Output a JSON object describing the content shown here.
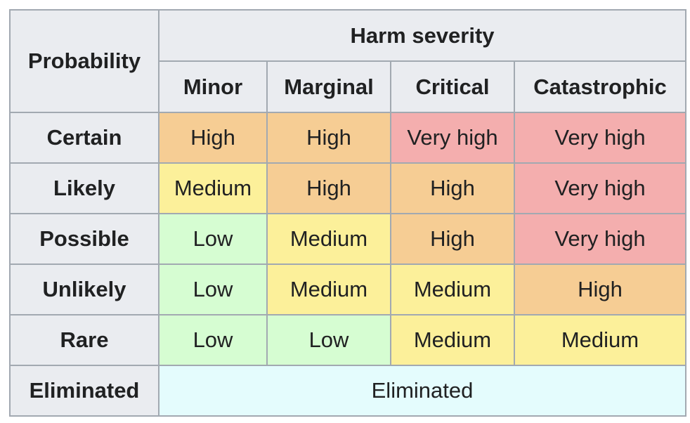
{
  "table": {
    "corner_label": "Probability",
    "severity_header": "Harm severity",
    "columns": [
      "Minor",
      "Marginal",
      "Critical",
      "Catastrophic"
    ],
    "rows": [
      {
        "label": "Certain",
        "cells": [
          "High",
          "High",
          "Very high",
          "Very high"
        ]
      },
      {
        "label": "Likely",
        "cells": [
          "Medium",
          "High",
          "High",
          "Very high"
        ]
      },
      {
        "label": "Possible",
        "cells": [
          "Low",
          "Medium",
          "High",
          "Very high"
        ]
      },
      {
        "label": "Unlikely",
        "cells": [
          "Low",
          "Medium",
          "Medium",
          "High"
        ]
      },
      {
        "label": "Rare",
        "cells": [
          "Low",
          "Low",
          "Medium",
          "Medium"
        ]
      }
    ],
    "eliminated_row": {
      "label": "Eliminated",
      "value": "Eliminated"
    }
  },
  "colors": {
    "very_high": "#f4aeae",
    "high": "#f6cd94",
    "medium": "#fcf09a",
    "low": "#d6fdd2",
    "eliminated": "#e4fcfd",
    "header_bg": "#eaecf0",
    "border": "#a2a9b1"
  }
}
